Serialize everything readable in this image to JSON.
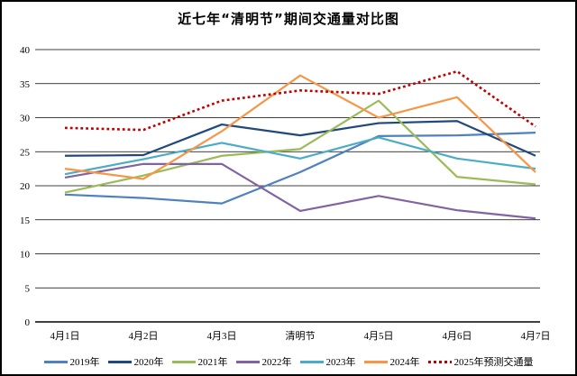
{
  "chart_data": {
    "type": "line",
    "title": "近七年“清明节”期间交通量对比图",
    "categories": [
      "4月1日",
      "4月2日",
      "4月3日",
      "清明节",
      "4月5日",
      "4月6日",
      "4月7日"
    ],
    "yticks": [
      0,
      5,
      10,
      15,
      20,
      25,
      30,
      35,
      40
    ],
    "ylim": [
      0,
      40
    ],
    "grid": true,
    "legend_position": "bottom",
    "series": [
      {
        "name": "2019年",
        "color": "#4F81BD",
        "style": "solid",
        "values": [
          18.7,
          18.2,
          17.4,
          22.0,
          27.3,
          27.4,
          27.8
        ]
      },
      {
        "name": "2020年",
        "color": "#1F497D",
        "style": "solid",
        "values": [
          24.4,
          24.5,
          29.0,
          27.4,
          29.2,
          29.5,
          24.4
        ]
      },
      {
        "name": "2021年",
        "color": "#9BBB59",
        "style": "solid",
        "values": [
          19.0,
          21.5,
          24.4,
          25.4,
          32.5,
          21.3,
          20.2
        ]
      },
      {
        "name": "2022年",
        "color": "#8064A2",
        "style": "solid",
        "values": [
          21.2,
          23.2,
          23.2,
          16.3,
          18.5,
          16.4,
          15.2
        ]
      },
      {
        "name": "2023年",
        "color": "#4BACC6",
        "style": "solid",
        "values": [
          21.7,
          23.9,
          26.3,
          24.0,
          27.1,
          24.0,
          22.5
        ]
      },
      {
        "name": "2024年",
        "color": "#F79646",
        "style": "solid",
        "values": [
          22.5,
          21.0,
          28.0,
          36.2,
          30.0,
          33.0,
          22.0
        ]
      },
      {
        "name": "2025年预测交通量",
        "color": "#C00000",
        "style": "dotted",
        "values": [
          28.5,
          28.2,
          32.5,
          34.0,
          33.5,
          36.8,
          28.7
        ]
      }
    ]
  }
}
